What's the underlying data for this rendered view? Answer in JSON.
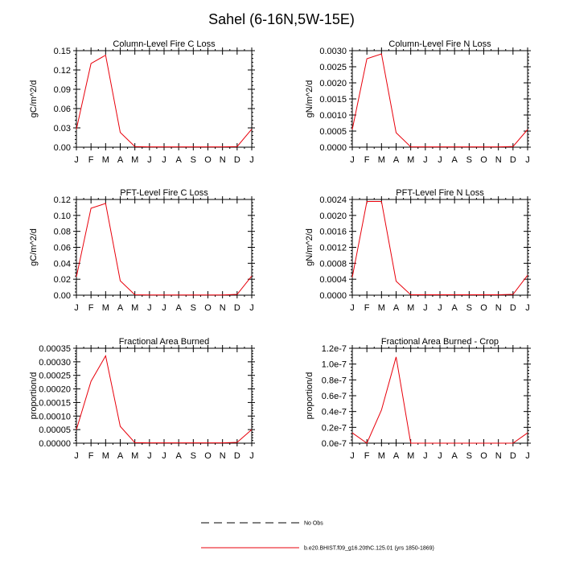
{
  "title": "Sahel (6-16N,5W-15E)",
  "colors": {
    "model_line": "#e8000b",
    "obs_line": "#000000",
    "axes": "#000000"
  },
  "legend": {
    "obs_label": "No Obs",
    "model_label": "b.e20.BHIST.f09_g16.20thC.125.01 (yrs 1850-1869)"
  },
  "chart_data": [
    {
      "type": "line",
      "title": "Column-Level Fire C Loss",
      "ylabel": "gC/m^2/d",
      "categories": [
        "J",
        "F",
        "M",
        "A",
        "M",
        "J",
        "J",
        "A",
        "S",
        "O",
        "N",
        "D",
        "J"
      ],
      "ylim": [
        0,
        0.15
      ],
      "yticks": [
        "0.00",
        "0.03",
        "0.06",
        "0.09",
        "0.12",
        "0.15"
      ],
      "series": [
        {
          "values": [
            0.028,
            0.13,
            0.143,
            0.023,
            0.001,
            0.0005,
            0.0005,
            0.0005,
            0.0005,
            0.0005,
            0.0005,
            0.001,
            0.028
          ]
        }
      ]
    },
    {
      "type": "line",
      "title": "Column-Level Fire N Loss",
      "ylabel": "gN/m^2/d",
      "categories": [
        "J",
        "F",
        "M",
        "A",
        "M",
        "J",
        "J",
        "A",
        "S",
        "O",
        "N",
        "D",
        "J"
      ],
      "ylim": [
        0,
        0.003
      ],
      "yticks": [
        "0.0000",
        "0.0005",
        "0.0010",
        "0.0015",
        "0.0020",
        "0.0025",
        "0.0030"
      ],
      "series": [
        {
          "values": [
            0.00055,
            0.00275,
            0.0029,
            0.00045,
            1e-05,
            1e-05,
            1e-05,
            1e-05,
            1e-05,
            1e-05,
            1e-05,
            2e-05,
            0.00055
          ]
        }
      ]
    },
    {
      "type": "line",
      "title": "PFT-Level Fire C Loss",
      "ylabel": "gC/m^2/d",
      "categories": [
        "J",
        "F",
        "M",
        "A",
        "M",
        "J",
        "J",
        "A",
        "S",
        "O",
        "N",
        "D",
        "J"
      ],
      "ylim": [
        0,
        0.12
      ],
      "yticks": [
        "0.00",
        "0.02",
        "0.04",
        "0.06",
        "0.08",
        "0.10",
        "0.12"
      ],
      "series": [
        {
          "values": [
            0.023,
            0.109,
            0.115,
            0.018,
            0.0005,
            0.0003,
            0.0003,
            0.0003,
            0.0003,
            0.0003,
            0.0003,
            0.001,
            0.024
          ]
        }
      ]
    },
    {
      "type": "line",
      "title": "PFT-Level Fire N Loss",
      "ylabel": "gN/m^2/d",
      "categories": [
        "J",
        "F",
        "M",
        "A",
        "M",
        "J",
        "J",
        "A",
        "S",
        "O",
        "N",
        "D",
        "J"
      ],
      "ylim": [
        0,
        0.0024
      ],
      "yticks": [
        "0.0000",
        "0.0004",
        "0.0008",
        "0.0012",
        "0.0016",
        "0.0020",
        "0.0024"
      ],
      "series": [
        {
          "values": [
            0.00045,
            0.00235,
            0.00235,
            0.00035,
            1e-05,
            1e-05,
            1e-05,
            1e-05,
            1e-05,
            1e-05,
            1e-05,
            2e-05,
            0.0005
          ]
        }
      ]
    },
    {
      "type": "line",
      "title": "Fractional Area Burned",
      "ylabel": "proportion/d",
      "categories": [
        "J",
        "F",
        "M",
        "A",
        "M",
        "J",
        "J",
        "A",
        "S",
        "O",
        "N",
        "D",
        "J"
      ],
      "ylim": [
        0,
        0.00035
      ],
      "yticks": [
        "0.00000",
        "0.00005",
        "0.00010",
        "0.00015",
        "0.00020",
        "0.00025",
        "0.00030",
        "0.00035"
      ],
      "series": [
        {
          "values": [
            5e-05,
            0.000228,
            0.000322,
            6.2e-05,
            2e-06,
            1e-06,
            1e-06,
            1e-06,
            1e-06,
            1e-06,
            1e-06,
            3e-06,
            5e-05
          ]
        }
      ]
    },
    {
      "type": "line",
      "title": "Fractional Area Burned - Crop",
      "ylabel": "proportion/d",
      "categories": [
        "J",
        "F",
        "M",
        "A",
        "M",
        "J",
        "J",
        "A",
        "S",
        "O",
        "N",
        "D",
        "J"
      ],
      "ylim": [
        0,
        1.2e-07
      ],
      "yticks": [
        "0.0e-7",
        "0.2e-7",
        "0.4e-7",
        "0.6e-7",
        "0.8e-7",
        "1.0e-7",
        "1.2e-7"
      ],
      "series": [
        {
          "values": [
            1.3e-08,
            0,
            4.2e-08,
            1.09e-07,
            0,
            0,
            0,
            0,
            0,
            0,
            0,
            0,
            1.3e-08
          ]
        }
      ]
    }
  ]
}
